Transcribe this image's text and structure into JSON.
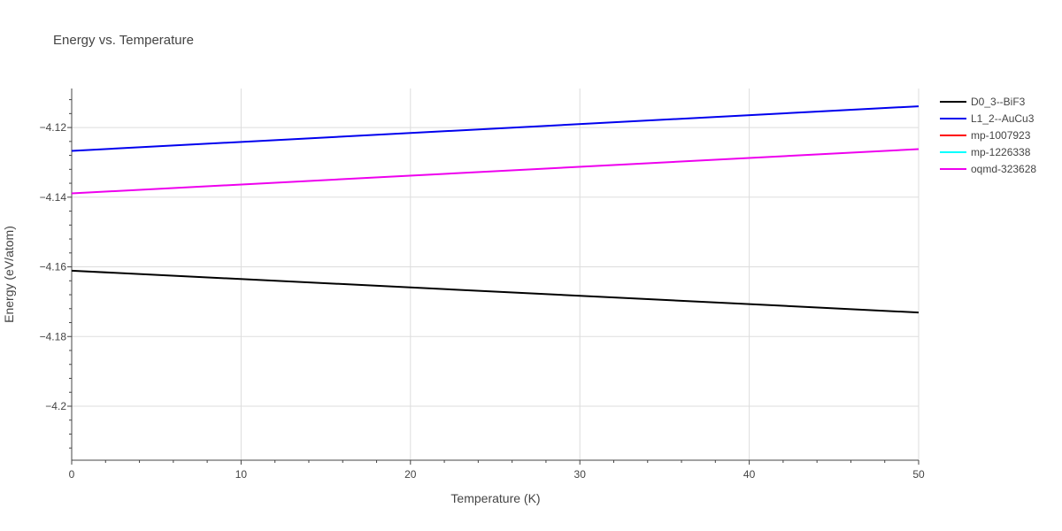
{
  "chart_data": {
    "type": "line",
    "title": "Energy vs. Temperature",
    "xlabel": "Temperature (K)",
    "ylabel": "Energy (eV/atom)",
    "xlim": [
      0,
      50
    ],
    "ylim": [
      -4.2155,
      -4.1088
    ],
    "x_ticks": [
      0,
      10,
      20,
      30,
      40,
      50
    ],
    "x_tick_labels": [
      "0",
      "10",
      "20",
      "30",
      "40",
      "50"
    ],
    "y_ticks": [
      -4.12,
      -4.14,
      -4.16,
      -4.18,
      -4.2
    ],
    "y_tick_labels": [
      "−4.12",
      "−4.14",
      "−4.16",
      "−4.18",
      "−4.2"
    ],
    "grid": true,
    "legend_position": "top-right",
    "series": [
      {
        "name": "D0_3--BiF3",
        "color": "#000000",
        "x": [
          0,
          50
        ],
        "y": [
          -4.1611,
          -4.1731
        ]
      },
      {
        "name": "L1_2--AuCu3",
        "color": "#0000ee",
        "x": [
          0,
          50
        ],
        "y": [
          -4.1267,
          -4.1139
        ]
      },
      {
        "name": "mp-1007923",
        "color": "#ff0000",
        "x": [],
        "y": []
      },
      {
        "name": "mp-1226338",
        "color": "#00ffff",
        "x": [],
        "y": []
      },
      {
        "name": "oqmd-323628",
        "color": "#ee00ee",
        "x": [
          0,
          50
        ],
        "y": [
          -4.1389,
          -4.1262
        ]
      }
    ]
  }
}
